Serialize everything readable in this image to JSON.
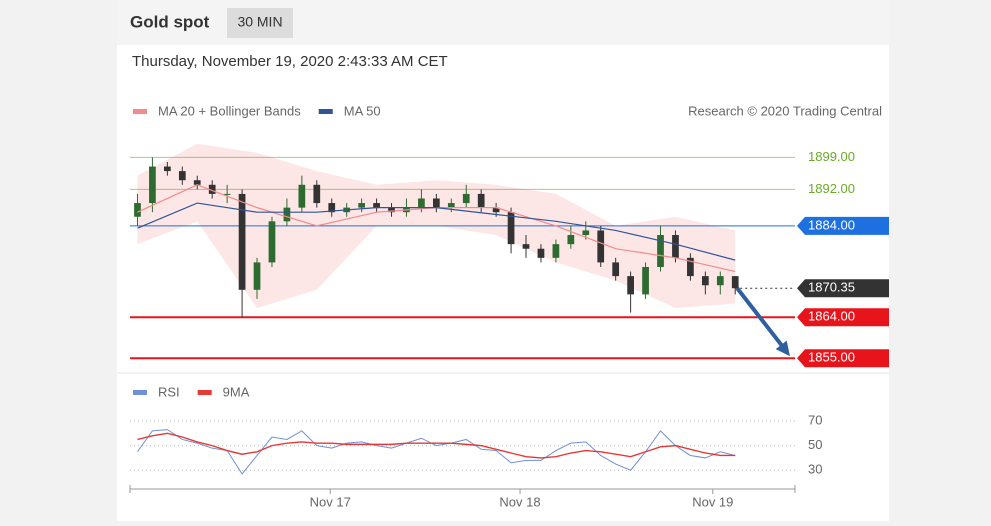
{
  "chart_data": {
    "type": "candlestick",
    "title": "Gold spot",
    "timeframe": "30 MIN",
    "subtitle": "Thursday, November 19, 2020 2:43:33 AM CET",
    "source": "Research © 2020 Trading Central",
    "up_color": "#2e6b30",
    "down_color": "#333333",
    "x": [
      0,
      1,
      2,
      3,
      4,
      5,
      6,
      7,
      8,
      9,
      10,
      11,
      12,
      13,
      14,
      15,
      16,
      17,
      18,
      19,
      20,
      21,
      22,
      23,
      24,
      25,
      26,
      27,
      28,
      29,
      30,
      31,
      32,
      33,
      34,
      35,
      36,
      37,
      38,
      39,
      40
    ],
    "open": [
      1886,
      1889,
      1897,
      1896,
      1894,
      1893,
      1891,
      1891,
      1870,
      1876,
      1885,
      1888,
      1893,
      1889,
      1887,
      1888,
      1889,
      1888,
      1887,
      1888,
      1890,
      1888,
      1889,
      1891,
      1888,
      1887,
      1880,
      1879,
      1877,
      1880,
      1882,
      1883,
      1876,
      1873,
      1869,
      1875,
      1882,
      1877,
      1873,
      1871,
      1873
    ],
    "high": [
      1891,
      1899,
      1898,
      1897,
      1895,
      1894,
      1893,
      1892,
      1877,
      1886,
      1890,
      1895,
      1894,
      1890,
      1889,
      1890,
      1890,
      1889,
      1890,
      1892,
      1891,
      1890,
      1893,
      1892,
      1889,
      1888,
      1882,
      1880,
      1881,
      1884,
      1885,
      1884,
      1877,
      1874,
      1876,
      1884,
      1883,
      1878,
      1874,
      1874,
      1873
    ],
    "low": [
      1884,
      1887,
      1895,
      1893,
      1892,
      1890,
      1889,
      1864,
      1868,
      1875,
      1884,
      1887,
      1888,
      1886,
      1886,
      1887,
      1887,
      1886,
      1886,
      1887,
      1887,
      1887,
      1888,
      1887,
      1886,
      1878,
      1877,
      1876,
      1876,
      1879,
      1881,
      1875,
      1872,
      1865,
      1868,
      1874,
      1876,
      1872,
      1869,
      1869,
      1869
    ],
    "close": [
      1889,
      1897,
      1896,
      1894,
      1893,
      1891,
      1891,
      1870,
      1876,
      1885,
      1888,
      1893,
      1889,
      1887,
      1888,
      1889,
      1888,
      1887,
      1888,
      1890,
      1888,
      1889,
      1891,
      1888,
      1887,
      1880,
      1879,
      1877,
      1880,
      1882,
      1883,
      1876,
      1873,
      1869,
      1875,
      1882,
      1877,
      1873,
      1871,
      1873,
      1870.35
    ],
    "overlays": [
      {
        "name": "MA 20 + Bollinger Bands",
        "color": "#f28b8b",
        "band_color": "#fde0e0",
        "x": [
          0,
          4,
          8,
          12,
          16,
          20,
          24,
          28,
          32,
          36,
          40
        ],
        "values": [
          1887,
          1893,
          1888,
          1884,
          1887,
          1888,
          1888,
          1884,
          1879,
          1877,
          1874
        ],
        "upper": [
          1895,
          1902,
          1900,
          1896,
          1893,
          1894,
          1893,
          1891,
          1884,
          1886,
          1883
        ],
        "lower": [
          1880,
          1885,
          1866,
          1870,
          1884,
          1884,
          1882,
          1876,
          1872,
          1866,
          1867
        ]
      },
      {
        "name": "MA 50",
        "color": "#2f5597",
        "x": [
          0,
          4,
          8,
          12,
          16,
          20,
          24,
          28,
          32,
          36,
          40
        ],
        "values": [
          1883.5,
          1889,
          1887,
          1887,
          1888,
          1888,
          1886.5,
          1885,
          1883,
          1880,
          1876.5
        ]
      }
    ],
    "levels": [
      {
        "value": 1899,
        "label": "1899.00",
        "color": "#6aaa2a",
        "style": "text",
        "line": "thin"
      },
      {
        "value": 1892,
        "label": "1892.00",
        "color": "#6aaa2a",
        "style": "text",
        "line": "thin"
      },
      {
        "value": 1884,
        "label": "1884.00",
        "color": "#1e6fe0",
        "style": "badge",
        "line": "thin"
      },
      {
        "value": 1870.35,
        "label": "1870.35",
        "color": "#333333",
        "style": "badge",
        "line": "dotted"
      },
      {
        "value": 1864,
        "label": "1864.00",
        "color": "#e8141b",
        "style": "badge",
        "line": "thick"
      },
      {
        "value": 1855,
        "label": "1855.00",
        "color": "#e8141b",
        "style": "badge",
        "line": "thick"
      }
    ],
    "arrow_color": "#2f5f9e",
    "xlim": [
      -0.5,
      44
    ],
    "xticks": [
      {
        "value": 12.9,
        "label": "Nov 17"
      },
      {
        "value": 25.6,
        "label": "Nov 18"
      },
      {
        "value": 38.5,
        "label": "Nov 19"
      }
    ],
    "ylim": [
      1852,
      1905
    ],
    "rsi_panel": {
      "ylim": [
        18,
        83
      ],
      "yticks": [
        70,
        50,
        30
      ],
      "series": [
        {
          "name": "RSI",
          "color": "#6f8fd8",
          "values": [
            45,
            62,
            63,
            55,
            52,
            48,
            46,
            27,
            42,
            57,
            55,
            62,
            50,
            48,
            52,
            53,
            50,
            48,
            52,
            56,
            50,
            52,
            55,
            47,
            46,
            36,
            38,
            38,
            46,
            52,
            53,
            42,
            35,
            30,
            45,
            62,
            50,
            42,
            40,
            45,
            42
          ]
        },
        {
          "name": "9MA",
          "color": "#e53935",
          "values": [
            55,
            58,
            60,
            57,
            53,
            50,
            46,
            43,
            45,
            50,
            52,
            53,
            52,
            52,
            51,
            51,
            51,
            51,
            52,
            52,
            52,
            52,
            51,
            50,
            47,
            44,
            41,
            40,
            41,
            44,
            46,
            45,
            43,
            41,
            45,
            49,
            50,
            47,
            44,
            42,
            42
          ]
        }
      ]
    }
  }
}
